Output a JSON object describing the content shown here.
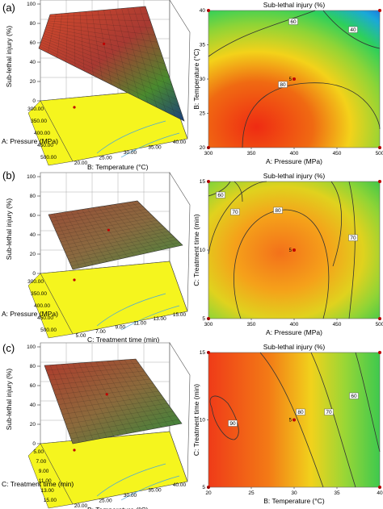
{
  "panel_labels": [
    "(a)",
    "(b)",
    "(c)"
  ],
  "center_point_label": "5",
  "chart_data": [
    {
      "id": "a-surface",
      "type": "surface3d",
      "title": "",
      "zlabel": "Sub-lethal injury (%)",
      "zticks": [
        "0",
        "20",
        "40",
        "60",
        "80",
        "100"
      ],
      "xlabel": "A: Pressure (MPa)",
      "xticks": [
        "300.00",
        "350.00",
        "400.00",
        "450.00",
        "500.00"
      ],
      "ylabel": "B: Temperature (°C)",
      "yticks": [
        "20.00",
        "25.00",
        "30.00",
        "35.00",
        "40.00"
      ]
    },
    {
      "id": "a-contour",
      "type": "contour",
      "title": "Sub-lethal injury (%)",
      "xlabel": "A: Pressure (MPa)",
      "xticks": [
        "300",
        "350",
        "400",
        "450",
        "500"
      ],
      "ylabel": "B: Temperature (°C)",
      "yticks": [
        "20",
        "25",
        "30",
        "35",
        "40"
      ],
      "contours": [
        {
          "label": "40",
          "value": 40
        },
        {
          "label": "60",
          "value": 60
        },
        {
          "label": "80",
          "value": 80
        }
      ],
      "center_point": {
        "x": 400,
        "y": 30,
        "replicates": 5
      }
    },
    {
      "id": "b-surface",
      "type": "surface3d",
      "title": "",
      "zlabel": "Sub-lethal injury (%)",
      "zticks": [
        "0",
        "20",
        "40",
        "60",
        "80",
        "100"
      ],
      "xlabel": "A: Pressure (MPa)",
      "xticks": [
        "300.00",
        "350.00",
        "400.00",
        "450.00",
        "500.00"
      ],
      "ylabel": "C: Treatment time (min)",
      "yticks": [
        "5.00",
        "7.00",
        "9.00",
        "11.00",
        "13.00",
        "15.00"
      ]
    },
    {
      "id": "b-contour",
      "type": "contour",
      "title": "Sub-lethal injury (%)",
      "xlabel": "A: Pressure (MPa)",
      "xticks": [
        "300",
        "350",
        "400",
        "450",
        "500"
      ],
      "ylabel": "C: Treatment time (min)",
      "yticks": [
        "5",
        "10",
        "15"
      ],
      "contours": [
        {
          "label": "60",
          "value": 60
        },
        {
          "label": "70",
          "value": 70
        },
        {
          "label": "80",
          "value": 80
        }
      ],
      "center_point": {
        "x": 400,
        "y": 10,
        "replicates": 5
      }
    },
    {
      "id": "c-surface",
      "type": "surface3d",
      "title": "",
      "zlabel": "Sub-lethal injury (%)",
      "zticks": [
        "0",
        "20",
        "40",
        "60",
        "80",
        "100"
      ],
      "xlabel": "C: Treatment time (min)",
      "xticks": [
        "5.00",
        "7.00",
        "9.00",
        "11.00",
        "13.00",
        "15.00"
      ],
      "ylabel": "B: Temperature (°C)",
      "yticks": [
        "20.00",
        "25.00",
        "30.00",
        "35.00",
        "40.00"
      ]
    },
    {
      "id": "c-contour",
      "type": "contour",
      "title": "Sub-lethal injury (%)",
      "xlabel": "B: Temperature (°C)",
      "xticks": [
        "20",
        "25",
        "30",
        "35",
        "40"
      ],
      "ylabel": "C: Treatment time (min)",
      "yticks": [
        "5",
        "10",
        "15"
      ],
      "contours": [
        {
          "label": "60",
          "value": 60
        },
        {
          "label": "70",
          "value": 70
        },
        {
          "label": "80",
          "value": 80
        },
        {
          "label": "90",
          "value": 90
        }
      ],
      "center_point": {
        "x": 30,
        "y": 10,
        "replicates": 5
      }
    }
  ]
}
